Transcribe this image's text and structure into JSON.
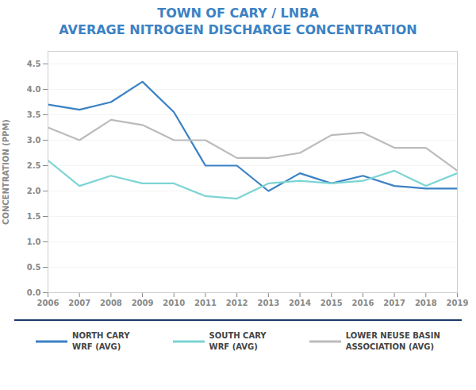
{
  "chart_data": {
    "type": "line",
    "title": "TOWN OF CARY / LNBA",
    "subtitle": "AVERAGE NITROGEN DISCHARGE CONCENTRATION",
    "y_label": "CONCENTRATION (PPM)",
    "x": [
      2006,
      2007,
      2008,
      2009,
      2010,
      2011,
      2012,
      2013,
      2014,
      2015,
      2016,
      2017,
      2018,
      2019
    ],
    "series": [
      {
        "name": "NORTH CARY\nWRF (AVG)",
        "color": "#3B82C4",
        "values": [
          3.7,
          3.6,
          3.75,
          4.15,
          3.55,
          2.5,
          2.5,
          2.0,
          2.35,
          2.15,
          2.3,
          2.1,
          2.05,
          2.05
        ]
      },
      {
        "name": "SOUTH CARY\nWRF (AVG)",
        "color": "#7DD4D4",
        "values": [
          2.6,
          2.1,
          2.3,
          2.15,
          2.15,
          1.9,
          1.85,
          2.15,
          2.2,
          2.15,
          2.2,
          2.4,
          2.1,
          2.35
        ]
      },
      {
        "name": "LOWER NEUSE BASIN\nASSOCIATION (AVG)",
        "color": "#BBBBBB",
        "values": [
          3.25,
          3.0,
          3.4,
          3.3,
          3.0,
          3.0,
          2.65,
          2.65,
          2.75,
          3.1,
          3.15,
          2.85,
          2.85,
          2.4
        ]
      }
    ],
    "xlim": [
      2006,
      2019
    ],
    "xticks": [
      2006,
      2007,
      2008,
      2009,
      2010,
      2011,
      2012,
      2013,
      2014,
      2015,
      2016,
      2017,
      2018,
      2019
    ],
    "ylim": [
      0.0,
      4.75
    ],
    "yticks": [
      {
        "value": 0,
        "label": "0.0"
      },
      0.5,
      {
        "value": 1,
        "label": "1.0"
      },
      1.5,
      {
        "value": 2,
        "label": "2.0"
      },
      2.5,
      {
        "value": 3,
        "label": "3.0"
      },
      3.5,
      {
        "value": 4,
        "label": "4.0"
      },
      4.5
    ],
    "grid": true,
    "legend": "bottom"
  }
}
